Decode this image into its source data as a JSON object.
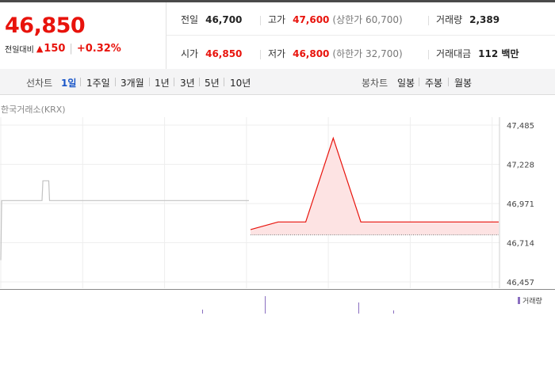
{
  "quote": {
    "price": "46,850",
    "change_label": "전일대비",
    "change_arrow": "▲",
    "change_amount": "150",
    "change_percent": "+0.32%",
    "prev_close": {
      "label": "전일",
      "value": "46,700"
    },
    "high": {
      "label": "고가",
      "value": "47,600",
      "sub": "(상한가 60,700)"
    },
    "volume": {
      "label": "거래량",
      "value": "2,389"
    },
    "open": {
      "label": "시가",
      "value": "46,850"
    },
    "low": {
      "label": "저가",
      "value": "46,800",
      "sub": "(하한가 32,700)"
    },
    "trade_value": {
      "label": "거래대금",
      "value": "112 백만"
    }
  },
  "tabs": {
    "line_label": "선차트",
    "line_periods": [
      "1일",
      "1주일",
      "3개월",
      "1년",
      "3년",
      "5년",
      "10년"
    ],
    "active_period": "1일",
    "candle_label": "봉차트",
    "candle_periods": [
      "일봉",
      "주봉",
      "월봉"
    ]
  },
  "chart": {
    "source_label": "한국거래소(KRX)",
    "y_ticks": [
      "47,485",
      "47,228",
      "46,971",
      "46,714",
      "46,457"
    ],
    "volume_label": "거래량",
    "colors": {
      "prev_line": "#c2c2c2",
      "today_line": "#e8130c",
      "today_fill": "#fde3e3",
      "volume": "#8a6fc0"
    }
  },
  "chart_data": {
    "type": "line",
    "ylim": [
      46457,
      47485
    ],
    "y_ticks": [
      47485,
      47228,
      46971,
      46714,
      46457
    ],
    "series": [
      {
        "values": [
          46600,
          46990,
          46990,
          46990,
          46990,
          46990,
          46990,
          46990,
          46990,
          46990,
          46990,
          46990,
          46990,
          46990,
          46990,
          46990,
          46990,
          46990,
          46990,
          46990,
          46990,
          46990,
          46990,
          46990,
          46990,
          46990,
          46990,
          46990,
          46990,
          46990,
          46990,
          46990,
          46990,
          46990,
          46990,
          46990,
          46990,
          46990,
          46990,
          46990,
          46990,
          46990,
          46990,
          46990,
          46990,
          46990,
          46990,
          46990,
          46990,
          46990,
          47120,
          47120,
          47120,
          47120,
          47120,
          47120,
          47120,
          47120,
          46990,
          46990,
          46990,
          46990,
          46990,
          46990,
          46990,
          46990,
          46990,
          46990,
          46990,
          46990,
          46990,
          46990,
          46990,
          46990,
          46990,
          46990,
          46990,
          46990,
          46990,
          46990,
          46990,
          46990,
          46990,
          46990,
          46990,
          46990,
          46990,
          46990,
          46990,
          46990,
          46990,
          46990,
          46990,
          46990,
          46990,
          46990,
          46990,
          46990,
          46990,
          46990,
          46990,
          46990,
          46990,
          46990,
          46990,
          46990,
          46990,
          46990,
          46990,
          46990,
          46990,
          46990,
          46990,
          46990,
          46990,
          46990,
          46990,
          46990,
          46990,
          46990,
          46990,
          46990,
          46990,
          46990,
          46990,
          46990,
          46990,
          46990,
          46990,
          46990,
          46990,
          46990,
          46990,
          46990,
          46990,
          46990,
          46990,
          46990,
          46990,
          46990,
          46990,
          46990,
          46990,
          46990,
          46990,
          46990,
          46990,
          46990,
          46990,
          46990,
          46990,
          46990,
          46990,
          46990,
          46990,
          46990,
          46990,
          46990,
          46990,
          46990,
          46990,
          46990,
          46990,
          46990,
          46990,
          46990,
          46990,
          46990,
          46990,
          46990,
          46990,
          46990,
          46990,
          46990,
          46990,
          46990,
          46990,
          46990,
          46990,
          46990,
          46990,
          46990,
          46990,
          46990,
          46990,
          46990,
          46990,
          46990,
          46990,
          46990,
          46990,
          46990,
          46990,
          46990,
          46990,
          46990,
          46990,
          46990,
          46990,
          46990,
          46990,
          46990,
          46990,
          46990,
          46990,
          46990,
          46990,
          46990,
          46990,
          46990,
          46990,
          46990,
          46990,
          46990,
          46990,
          46990,
          46990,
          46990,
          46990,
          46990,
          46990,
          46990,
          46990,
          46990,
          46990,
          46990,
          46990,
          46990,
          46990,
          46990,
          46990,
          46990,
          46990,
          46990,
          46990,
          46990,
          46990,
          46990,
          46990,
          46990,
          46990,
          46990,
          46990,
          46990,
          46990,
          46990,
          46990,
          46990,
          46990,
          46990,
          46990,
          46990,
          46990,
          46990,
          46990,
          46990,
          46990,
          46990,
          46990,
          46990,
          46990,
          46990,
          46990,
          46990,
          46990,
          46990,
          46990,
          46990,
          46990,
          46990,
          46990,
          46990,
          46990,
          46990,
          46990,
          46990,
          46990,
          46990,
          46990,
          46990,
          46990,
          46990,
          46990,
          46990,
          46990,
          46990,
          46990,
          46990,
          46990,
          46990,
          46990,
          46990,
          46990,
          46990,
          46990,
          46990
        ]
      },
      {
        "values": [
          46800,
          46850,
          46850,
          47400,
          46850,
          46850,
          46850,
          46850,
          46850,
          46850
        ]
      }
    ]
  }
}
